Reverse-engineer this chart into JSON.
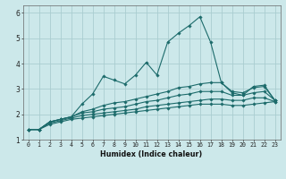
{
  "title": "",
  "xlabel": "Humidex (Indice chaleur)",
  "ylabel": "",
  "background_color": "#cce8ea",
  "grid_color": "#aacdd0",
  "line_color": "#1c6b6b",
  "xlim": [
    -0.5,
    23.5
  ],
  "ylim": [
    1,
    6.3
  ],
  "x": [
    0,
    1,
    2,
    3,
    4,
    5,
    6,
    7,
    8,
    9,
    10,
    11,
    12,
    13,
    14,
    15,
    16,
    17,
    18,
    19,
    20,
    21,
    22,
    23
  ],
  "line1": [
    1.4,
    1.4,
    1.7,
    1.8,
    1.9,
    2.4,
    2.8,
    3.5,
    3.35,
    3.2,
    3.55,
    4.05,
    3.55,
    4.85,
    5.2,
    5.5,
    5.85,
    4.85,
    3.25,
    2.85,
    2.75,
    3.1,
    3.15,
    2.55
  ],
  "line2": [
    1.4,
    1.4,
    1.7,
    1.8,
    1.9,
    2.1,
    2.2,
    2.35,
    2.45,
    2.5,
    2.6,
    2.7,
    2.8,
    2.9,
    3.05,
    3.1,
    3.2,
    3.25,
    3.25,
    2.9,
    2.85,
    3.05,
    3.1,
    2.55
  ],
  "line3": [
    1.4,
    1.4,
    1.7,
    1.8,
    1.9,
    2.05,
    2.1,
    2.2,
    2.25,
    2.3,
    2.4,
    2.5,
    2.55,
    2.65,
    2.75,
    2.8,
    2.9,
    2.9,
    2.9,
    2.75,
    2.75,
    2.85,
    2.9,
    2.55
  ],
  "line4": [
    1.4,
    1.4,
    1.65,
    1.75,
    1.85,
    1.95,
    2.0,
    2.05,
    2.1,
    2.15,
    2.2,
    2.3,
    2.35,
    2.4,
    2.45,
    2.5,
    2.55,
    2.6,
    2.6,
    2.55,
    2.55,
    2.65,
    2.65,
    2.5
  ],
  "line5": [
    1.4,
    1.4,
    1.6,
    1.7,
    1.8,
    1.85,
    1.9,
    1.95,
    2.0,
    2.05,
    2.1,
    2.15,
    2.2,
    2.25,
    2.3,
    2.35,
    2.4,
    2.4,
    2.4,
    2.35,
    2.35,
    2.4,
    2.45,
    2.5
  ],
  "yticks": [
    1,
    2,
    3,
    4,
    5,
    6
  ],
  "xticks": [
    0,
    1,
    2,
    3,
    4,
    5,
    6,
    7,
    8,
    9,
    10,
    11,
    12,
    13,
    14,
    15,
    16,
    17,
    18,
    19,
    20,
    21,
    22,
    23
  ],
  "xlabel_fontsize": 5.8,
  "xtick_fontsize": 4.8,
  "ytick_fontsize": 5.5
}
